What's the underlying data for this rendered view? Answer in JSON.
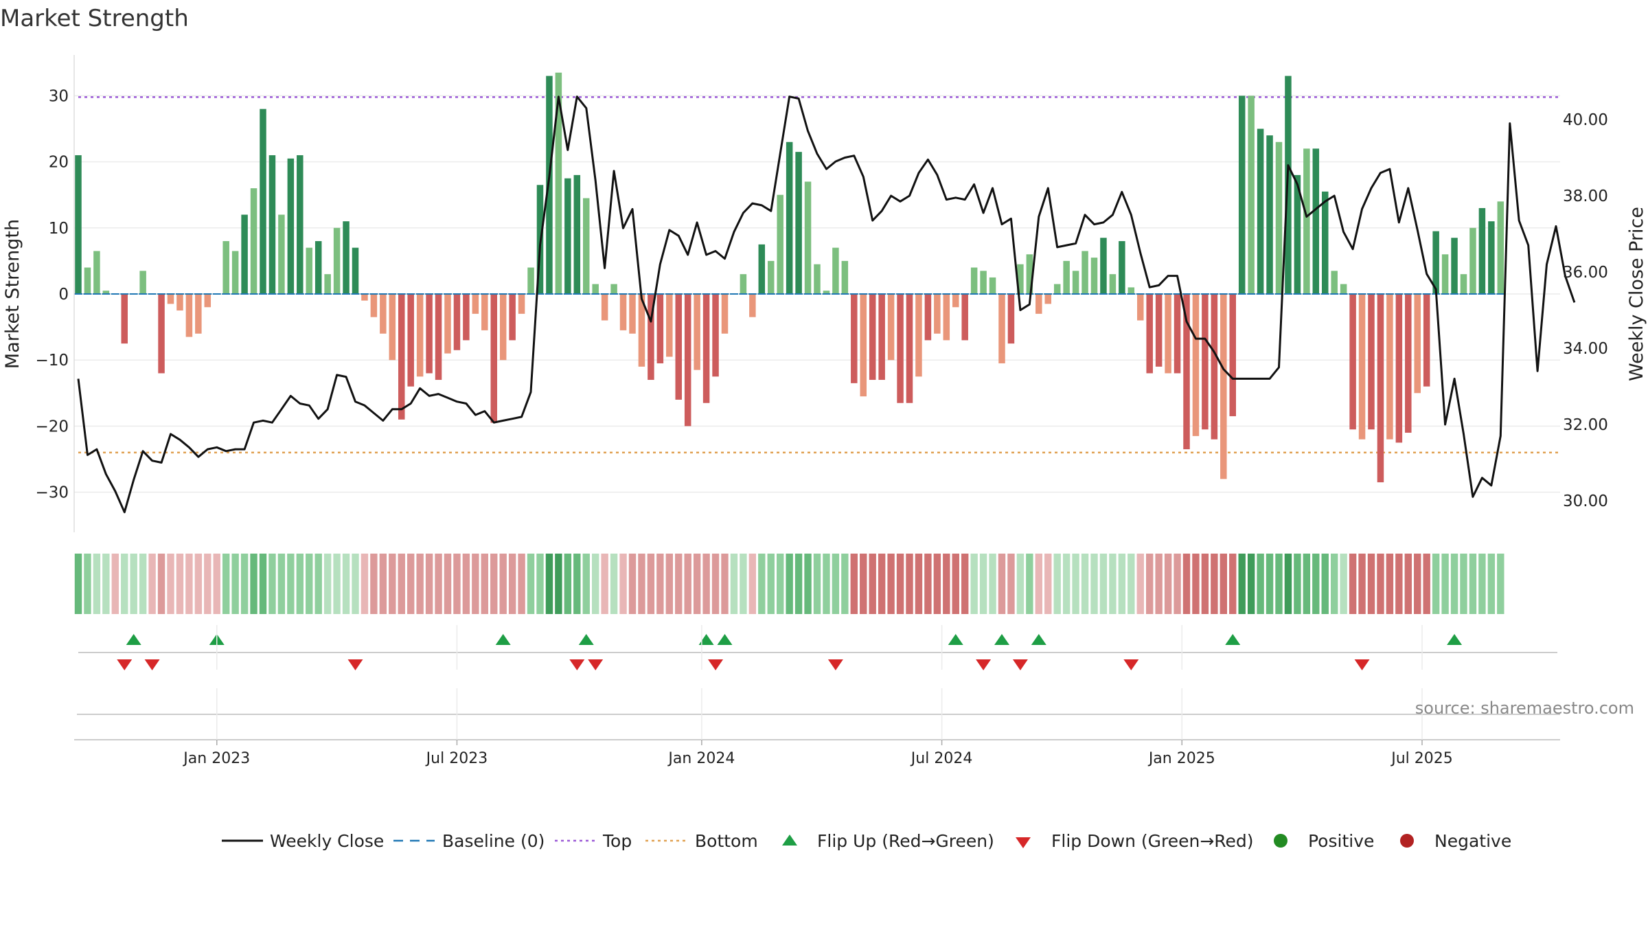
{
  "title": "Market Strength",
  "source": "source: sharemaestro.com",
  "chart_data": {
    "type": "bar+line",
    "title": "Market Strength",
    "ylabel_left": "Market Strength",
    "ylabel_right": "Weekly Close Price",
    "ylim_left": [
      -36,
      36
    ],
    "ylim_right": [
      29.0,
      42.0
    ],
    "left_ticks": [
      30,
      20,
      10,
      0,
      -10,
      -20,
      -30
    ],
    "left_tick_labels": [
      "30",
      "20",
      "10",
      "0",
      "−10",
      "−20",
      "−30"
    ],
    "right_ticks": [
      40,
      38,
      36,
      34,
      32,
      30
    ],
    "right_tick_labels": [
      "40.00",
      "38.00",
      "36.00",
      "34.00",
      "32.00",
      "30.00"
    ],
    "top_level": 29.8,
    "bottom_level": -24,
    "x_tick_labels": [
      "Jan 2023",
      "Jul 2023",
      "Jan 2024",
      "Jul 2024",
      "Jan 2025",
      "Jul 2025"
    ],
    "x_tick_index": [
      15,
      41,
      67.5,
      93.5,
      119.5,
      145.5
    ],
    "strength": [
      21,
      4,
      6.5,
      0.5,
      0,
      -7.5,
      0,
      3.5,
      0,
      -12,
      -1.5,
      -2.5,
      -6.5,
      -6,
      -2,
      0,
      8,
      6.5,
      12,
      16,
      28,
      21,
      12,
      20.5,
      21,
      7,
      8,
      3,
      10,
      11,
      7,
      -1,
      -3.5,
      -6,
      -10,
      -19,
      -14,
      -12.5,
      -12,
      -13,
      -9,
      -8.5,
      -7,
      -3,
      -5.5,
      -19.5,
      -10,
      -7,
      -3,
      4,
      16.5,
      33,
      33.5,
      17.5,
      18,
      14.5,
      1.5,
      -4,
      1.5,
      -5.5,
      -6,
      -11,
      -13,
      -10.5,
      -9.5,
      -16,
      -20,
      -11.5,
      -16.5,
      -12.5,
      -6,
      0,
      3,
      -3.5,
      7.5,
      5,
      15,
      23,
      21.5,
      17,
      4.5,
      0.5,
      7,
      5,
      -13.5,
      -15.5,
      -13,
      -13,
      -10,
      -16.5,
      -16.5,
      -12.5,
      -7,
      -6,
      -7,
      -2,
      -7,
      4,
      3.5,
      2.5,
      -10.5,
      -7.5,
      4.5,
      6,
      -3,
      -1.5,
      1.5,
      5,
      3.5,
      6.5,
      5.5,
      8.5,
      3,
      8,
      1,
      -4,
      -12,
      -11,
      -12,
      -12,
      -23.5,
      -21.5,
      -20.5,
      -22,
      -28,
      -18.5,
      30,
      30,
      25,
      24,
      23,
      33,
      18,
      22,
      22,
      15.5,
      3.5,
      1.5,
      -20.5,
      -22,
      -20.5,
      -28.5,
      -22,
      -22.5,
      -21,
      -15,
      -14,
      9.5,
      6,
      8.5,
      3,
      10,
      13,
      11,
      14
    ],
    "weekly_close": [
      33.2,
      31.2,
      31.35,
      30.7,
      30.25,
      29.7,
      30.55,
      31.3,
      31.05,
      31.0,
      31.75,
      31.6,
      31.4,
      31.15,
      31.35,
      31.4,
      31.3,
      31.35,
      31.35,
      32.05,
      32.1,
      32.05,
      32.4,
      32.75,
      32.55,
      32.5,
      32.15,
      32.4,
      33.3,
      33.25,
      32.6,
      32.5,
      32.3,
      32.1,
      32.4,
      32.4,
      32.55,
      32.95,
      32.75,
      32.8,
      32.7,
      32.6,
      32.55,
      32.25,
      32.35,
      32.05,
      32.1,
      32.15,
      32.2,
      32.85,
      36.7,
      38.5,
      40.6,
      39.2,
      40.6,
      40.3,
      38.4,
      36.1,
      38.65,
      37.15,
      37.65,
      35.3,
      34.7,
      36.2,
      37.1,
      36.95,
      36.45,
      37.3,
      36.45,
      36.55,
      36.35,
      37.05,
      37.55,
      37.8,
      37.75,
      37.6,
      39.1,
      40.6,
      40.55,
      39.7,
      39.1,
      38.7,
      38.9,
      39.0,
      39.05,
      38.5,
      37.35,
      37.6,
      38.0,
      37.85,
      38.0,
      38.6,
      38.95,
      38.55,
      37.9,
      37.95,
      37.9,
      38.3,
      37.55,
      38.2,
      37.25,
      37.4,
      35.0,
      35.15,
      37.45,
      38.2,
      36.65,
      36.7,
      36.75,
      37.5,
      37.25,
      37.3,
      37.5,
      38.1,
      37.5,
      36.5,
      35.6,
      35.65,
      35.9,
      35.9,
      34.7,
      34.25,
      34.25,
      33.9,
      33.45,
      33.2,
      33.2,
      33.2,
      33.2,
      33.2,
      33.5,
      38.8,
      38.3,
      37.45,
      37.65,
      37.85,
      38.0,
      37.05,
      36.6,
      37.65,
      38.2,
      38.6,
      38.7,
      37.3,
      38.2,
      37.1,
      35.95,
      35.55,
      32.0,
      33.2,
      31.75,
      30.1,
      30.6,
      30.4,
      31.7,
      39.9,
      37.35,
      36.7,
      33.4,
      36.2,
      37.2,
      35.9,
      35.2
    ],
    "trend_strip": [
      3,
      2,
      1,
      1,
      -1,
      1,
      1,
      1,
      -1,
      -2,
      -1,
      -1,
      -1,
      -1,
      -1,
      -1,
      2,
      2,
      2,
      3,
      3,
      2,
      2,
      2,
      2,
      2,
      2,
      1,
      1,
      1,
      1,
      -1,
      -2,
      -2,
      -2,
      -2,
      -2,
      -2,
      -2,
      -2,
      -2,
      -2,
      -2,
      -2,
      -2,
      -2,
      -2,
      -2,
      -2,
      2,
      2,
      4,
      4,
      3,
      3,
      2,
      1,
      -1,
      1,
      -1,
      -2,
      -2,
      -2,
      -2,
      -2,
      -2,
      -2,
      -2,
      -2,
      -2,
      -2,
      1,
      1,
      -1,
      2,
      2,
      2,
      3,
      3,
      3,
      2,
      2,
      2,
      2,
      -3,
      -3,
      -3,
      -3,
      -3,
      -3,
      -3,
      -3,
      -3,
      -3,
      -3,
      -3,
      -3,
      1,
      1,
      1,
      -2,
      -2,
      1,
      2,
      -1,
      -1,
      1,
      1,
      1,
      1,
      1,
      1,
      1,
      1,
      1,
      -1,
      -2,
      -2,
      -2,
      -2,
      -3,
      -3,
      -3,
      -3,
      -3,
      -3,
      4,
      4,
      3,
      3,
      3,
      4,
      3,
      3,
      3,
      3,
      2,
      1,
      -3,
      -3,
      -3,
      -3,
      -3,
      -3,
      -3,
      -3,
      -3,
      2,
      2,
      2,
      2,
      2,
      2,
      2,
      2
    ],
    "flip_up_index": [
      6,
      15,
      46,
      55,
      68,
      70,
      95,
      100,
      104,
      125,
      149
    ],
    "flip_down_index": [
      5,
      8,
      30,
      54,
      56,
      69,
      82,
      98,
      102,
      114,
      139
    ],
    "legend": [
      "Weekly Close",
      "Baseline (0)",
      "Top",
      "Bottom",
      "Flip Up (Red→Green)",
      "Flip Down (Green→Red)",
      "Positive",
      "Negative"
    ]
  },
  "colors": {
    "strong_green": "#2e8b57",
    "light_green": "#7cbf7f",
    "strong_red": "#cd5c5c",
    "light_red": "#e9967a",
    "baseline": "#1f77b4",
    "top_line": "#9b59d6",
    "bottom_line": "#e0a050",
    "price_line": "#111111",
    "flip_up": "#1e9e45",
    "flip_down": "#d62728",
    "positive": "#228b22",
    "negative": "#b22222",
    "grid": "#ebebeb",
    "axis_text": "#222222",
    "source_text": "#888888"
  }
}
